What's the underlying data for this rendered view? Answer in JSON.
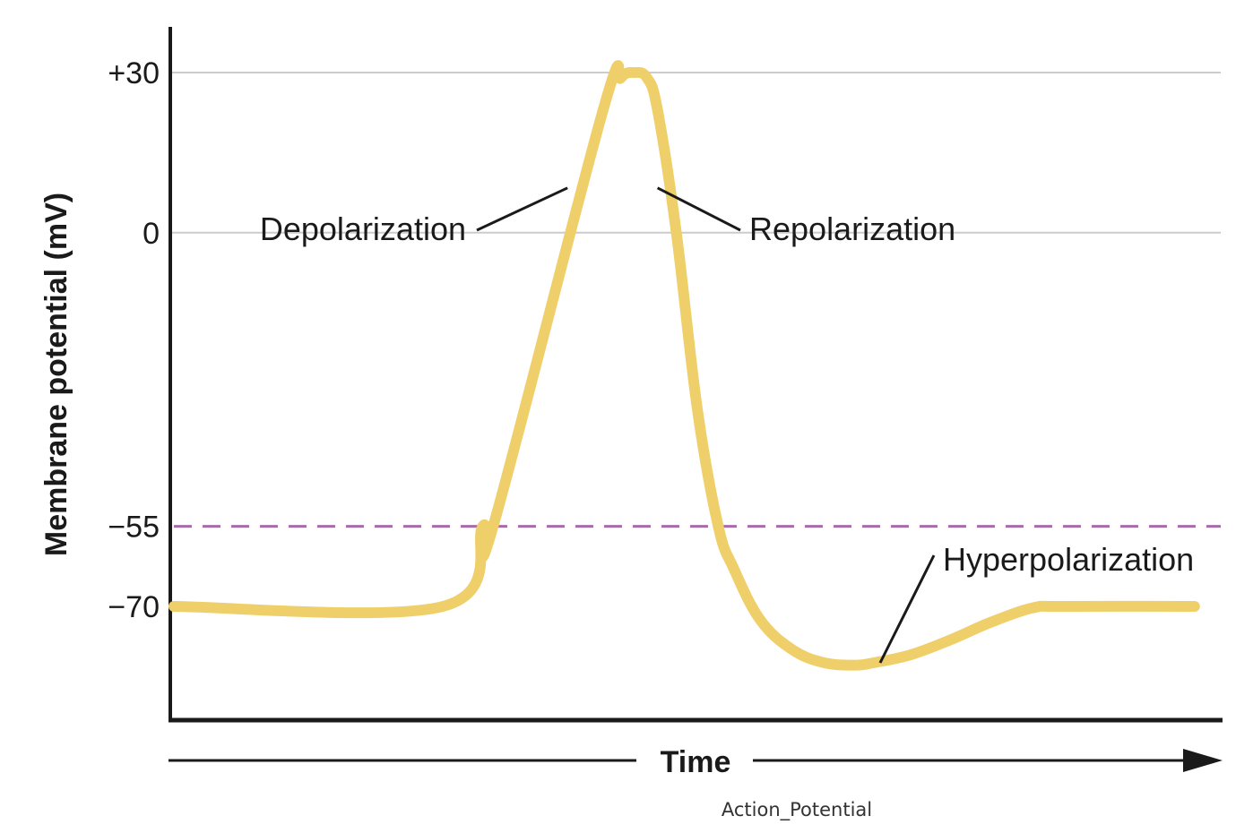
{
  "chart_data": {
    "type": "line",
    "title": "",
    "xlabel": "Time",
    "ylabel": "Membrane potential (mV)",
    "y_ticks": [
      {
        "value": 30,
        "label": "+30"
      },
      {
        "value": 0,
        "label": "0"
      },
      {
        "value": -55,
        "label": "−55"
      },
      {
        "value": -70,
        "label": "−70"
      }
    ],
    "ylim": [
      -87,
      37
    ],
    "xlim": [
      0,
      100
    ],
    "grid": "horizontal lines at +30 and 0",
    "threshold": {
      "value": -55,
      "style": "dashed",
      "color": "#a86aa8"
    },
    "series": [
      {
        "color": "#efcf6a",
        "points": [
          [
            0,
            -70
          ],
          [
            25.7,
            -70
          ],
          [
            29.5,
            -55
          ],
          [
            30.5,
            -55
          ],
          [
            41,
            23
          ],
          [
            42.7,
            29
          ],
          [
            44,
            30
          ],
          [
            45.2,
            29
          ],
          [
            46.2,
            23
          ],
          [
            48,
            0
          ],
          [
            50,
            -33
          ],
          [
            52,
            -55
          ],
          [
            53.5,
            -63
          ],
          [
            56,
            -72.5
          ],
          [
            59,
            -78
          ],
          [
            62,
            -80.5
          ],
          [
            65,
            -81
          ],
          [
            67,
            -80.5
          ],
          [
            70.5,
            -79
          ],
          [
            74.5,
            -76
          ],
          [
            78,
            -73
          ],
          [
            82,
            -70.3
          ],
          [
            85,
            -70
          ],
          [
            97.5,
            -70
          ]
        ]
      }
    ],
    "annotations": [
      {
        "label": "Depolarization",
        "point": [
          37.6,
          0
        ]
      },
      {
        "label": "Repolarization",
        "point": [
          46.2,
          0
        ]
      },
      {
        "label": "Hyperpolarization",
        "point": [
          67.5,
          -80
        ]
      }
    ]
  },
  "caption": "Action_Potential",
  "colors": {
    "trace": "#efcf6a",
    "threshold": "#a86aa8",
    "gridline": "#cccccc",
    "axis": "#1a1a1a",
    "background": "#ffffff"
  }
}
